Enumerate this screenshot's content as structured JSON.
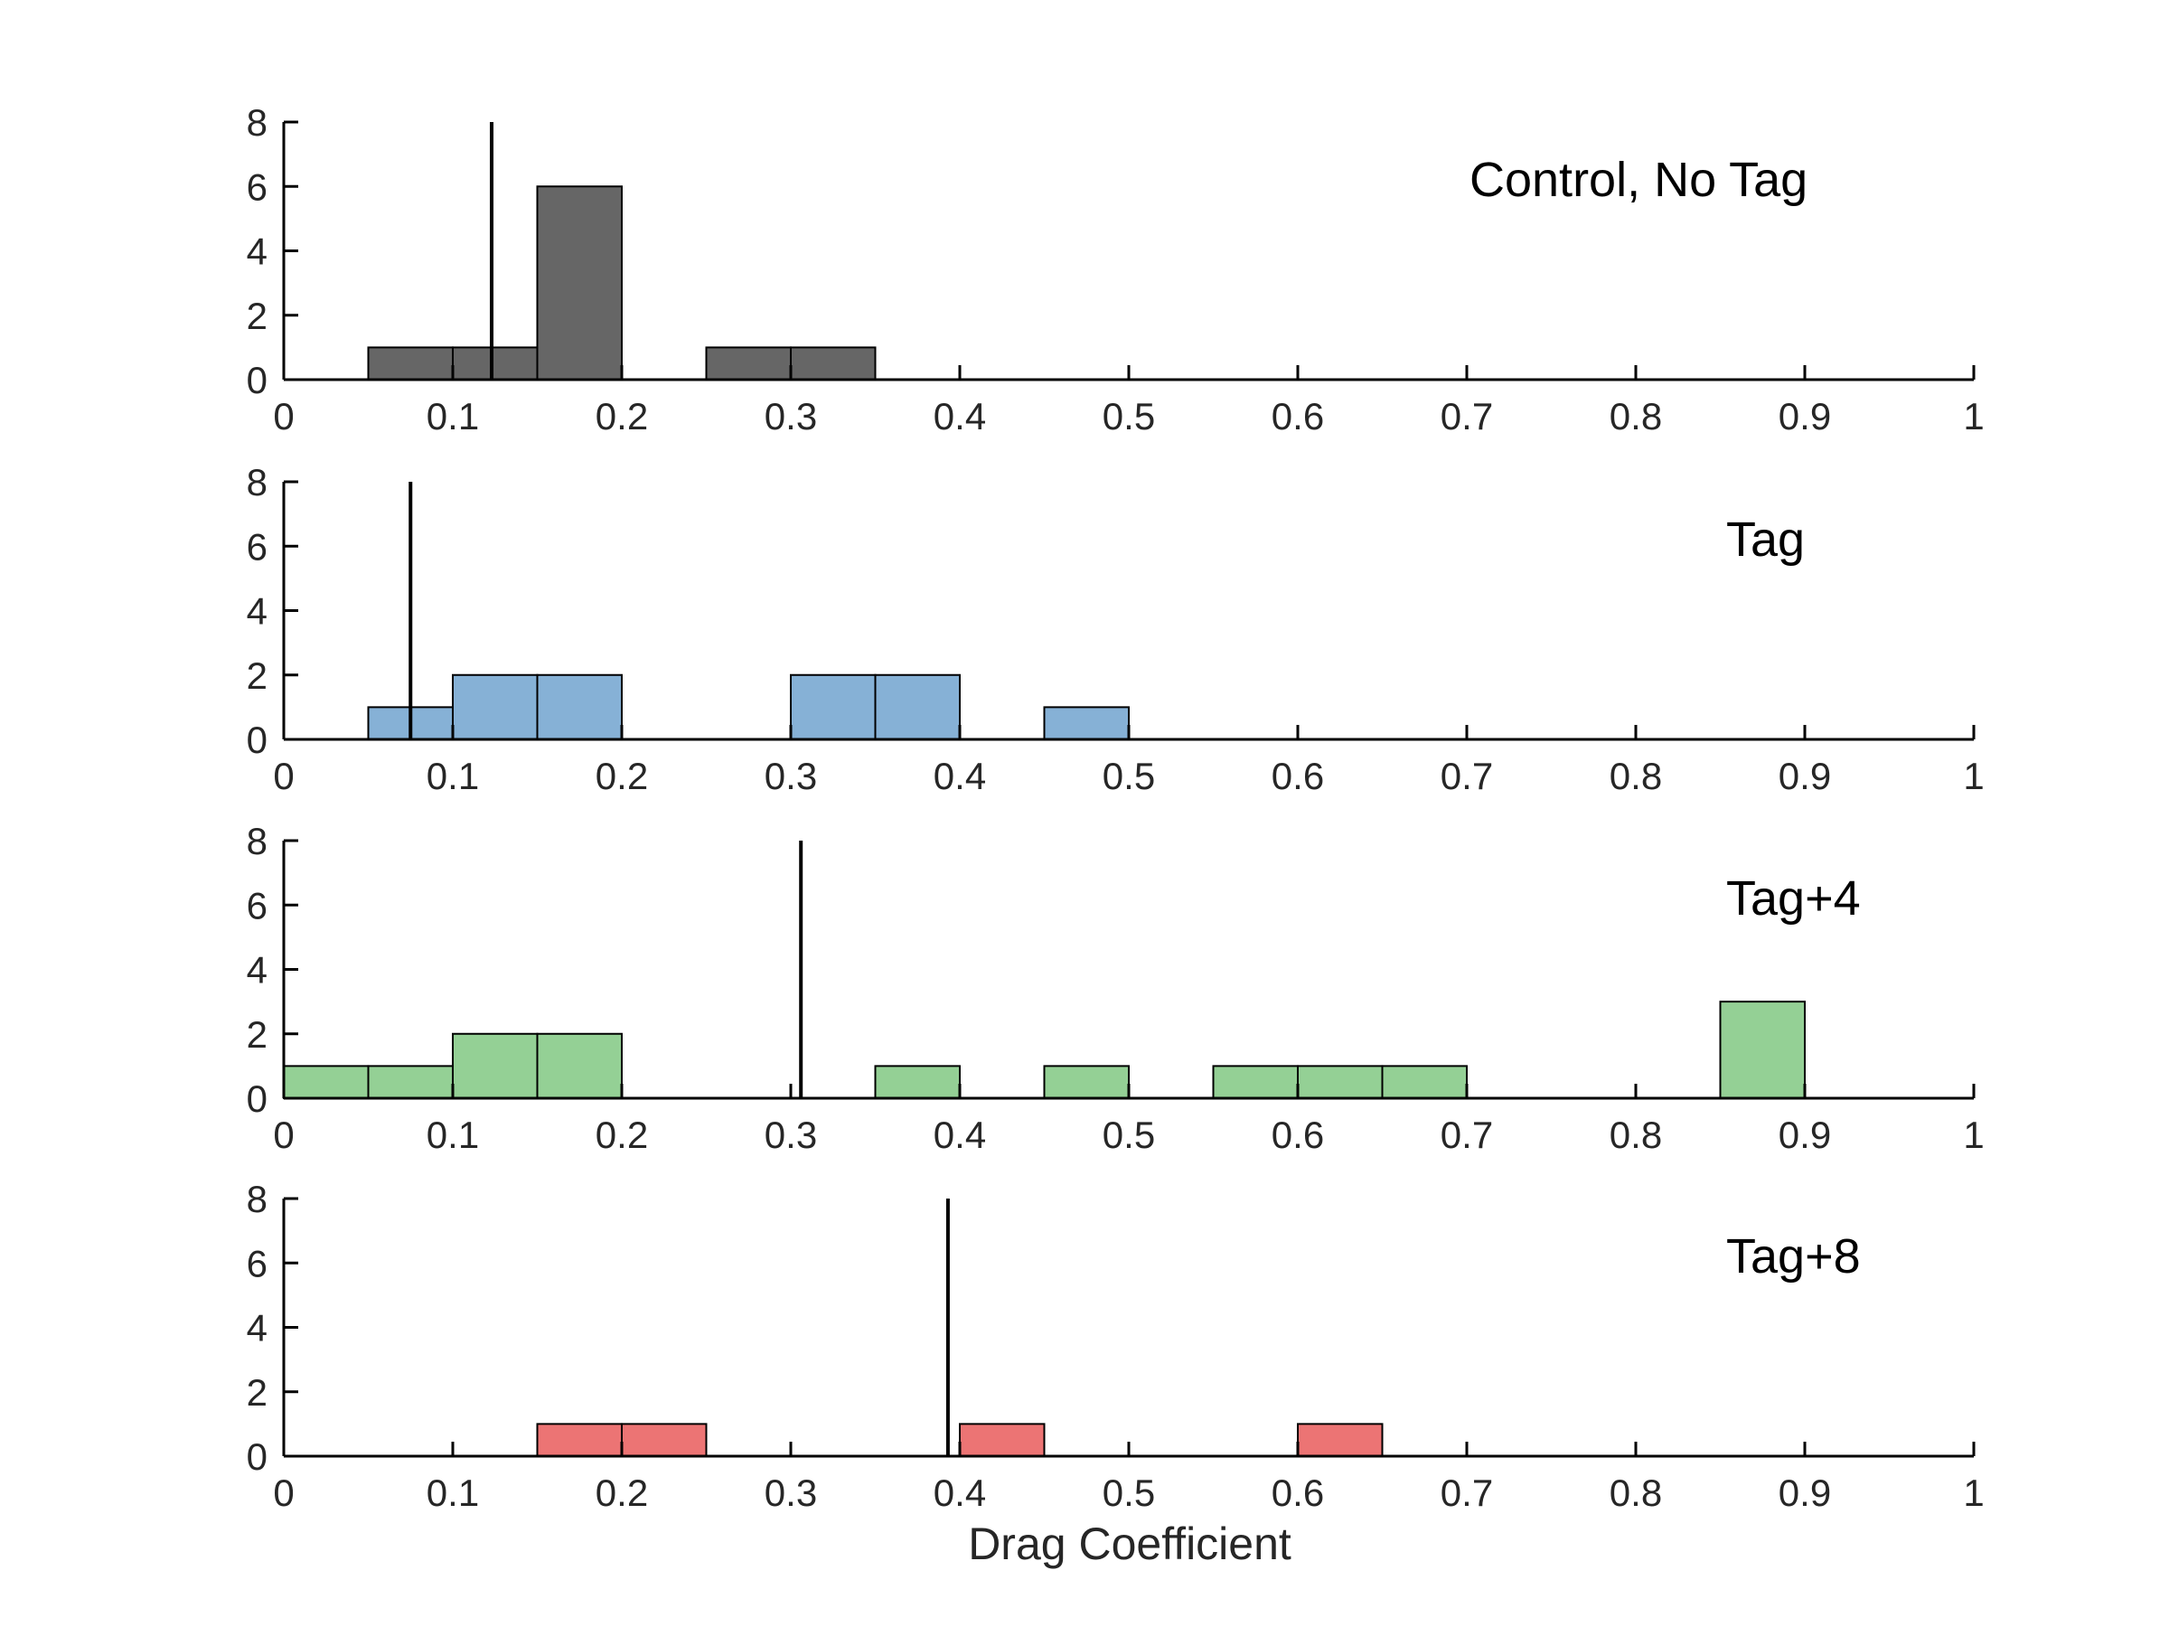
{
  "chart_data": [
    {
      "type": "bar",
      "panel_label": "Control, No Tag",
      "color": "#666666",
      "bin_width": 0.05,
      "bins": [
        {
          "x0": 0.05,
          "count": 1
        },
        {
          "x0": 0.1,
          "count": 1
        },
        {
          "x0": 0.15,
          "count": 6
        },
        {
          "x0": 0.25,
          "count": 1
        },
        {
          "x0": 0.3,
          "count": 1
        }
      ],
      "mean_line_x": 0.123,
      "xlim": [
        0,
        1
      ],
      "ylim": [
        0,
        8
      ],
      "xticks": [
        "0",
        "0.1",
        "0.2",
        "0.3",
        "0.4",
        "0.5",
        "0.6",
        "0.7",
        "0.8",
        "0.9",
        "1"
      ],
      "yticks": [
        "0",
        "2",
        "4",
        "6",
        "8"
      ]
    },
    {
      "type": "bar",
      "panel_label": "Tag",
      "color": "#86b1d6",
      "bin_width": 0.05,
      "bins": [
        {
          "x0": 0.05,
          "count": 1
        },
        {
          "x0": 0.1,
          "count": 2
        },
        {
          "x0": 0.15,
          "count": 2
        },
        {
          "x0": 0.3,
          "count": 2
        },
        {
          "x0": 0.35,
          "count": 2
        },
        {
          "x0": 0.45,
          "count": 1
        }
      ],
      "mean_line_x": 0.075,
      "xlim": [
        0,
        1
      ],
      "ylim": [
        0,
        8
      ],
      "xticks": [
        "0",
        "0.1",
        "0.2",
        "0.3",
        "0.4",
        "0.5",
        "0.6",
        "0.7",
        "0.8",
        "0.9",
        "1"
      ],
      "yticks": [
        "0",
        "2",
        "4",
        "6",
        "8"
      ]
    },
    {
      "type": "bar",
      "panel_label": "Tag+4",
      "color": "#94d095",
      "bin_width": 0.05,
      "bins": [
        {
          "x0": 0.0,
          "count": 1
        },
        {
          "x0": 0.05,
          "count": 1
        },
        {
          "x0": 0.1,
          "count": 2
        },
        {
          "x0": 0.15,
          "count": 2
        },
        {
          "x0": 0.35,
          "count": 1
        },
        {
          "x0": 0.45,
          "count": 1
        },
        {
          "x0": 0.55,
          "count": 1
        },
        {
          "x0": 0.6,
          "count": 1
        },
        {
          "x0": 0.65,
          "count": 1
        },
        {
          "x0": 0.85,
          "count": 3
        }
      ],
      "mean_line_x": 0.306,
      "xlim": [
        0,
        1
      ],
      "ylim": [
        0,
        8
      ],
      "xticks": [
        "0",
        "0.1",
        "0.2",
        "0.3",
        "0.4",
        "0.5",
        "0.6",
        "0.7",
        "0.8",
        "0.9",
        "1"
      ],
      "yticks": [
        "0",
        "2",
        "4",
        "6",
        "8"
      ]
    },
    {
      "type": "bar",
      "panel_label": "Tag+8",
      "color": "#ec7474",
      "bin_width": 0.05,
      "bins": [
        {
          "x0": 0.15,
          "count": 1
        },
        {
          "x0": 0.2,
          "count": 1
        },
        {
          "x0": 0.4,
          "count": 1
        },
        {
          "x0": 0.6,
          "count": 1
        }
      ],
      "mean_line_x": 0.393,
      "xlim": [
        0,
        1
      ],
      "ylim": [
        0,
        8
      ],
      "xticks": [
        "0",
        "0.1",
        "0.2",
        "0.3",
        "0.4",
        "0.5",
        "0.6",
        "0.7",
        "0.8",
        "0.9",
        "1"
      ],
      "yticks": [
        "0",
        "2",
        "4",
        "6",
        "8"
      ]
    }
  ],
  "xlabel": "Drag Coefficient",
  "grid": false
}
